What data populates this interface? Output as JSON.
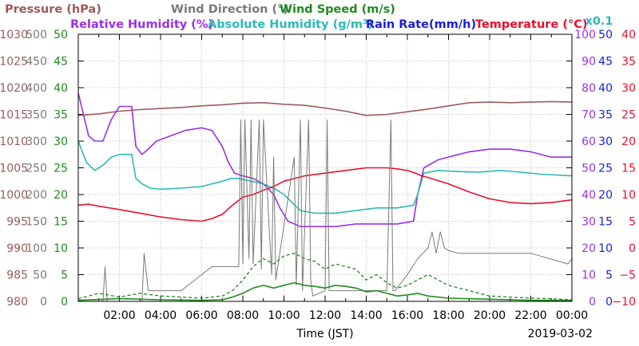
{
  "chart_data": {
    "type": "line",
    "date": "2019-03-02",
    "xlabel": "Time (JST)",
    "x_tick_labels": [
      "02:00",
      "04:00",
      "06:00",
      "08:00",
      "10:00",
      "12:00",
      "14:00",
      "16:00",
      "18:00",
      "20:00",
      "22:00",
      "00:00"
    ],
    "x_range_hours": [
      0,
      24
    ],
    "grid": true,
    "colors": {
      "pressure": "#9b5b5b",
      "wind_direction": "#7a7a7a",
      "wind_speed": "#1f8a1f",
      "relative_humidity": "#9b30e8",
      "absolute_humidity": "#2eb8b8",
      "rain_rate": "#1c1cd6",
      "temperature": "#e8102e"
    },
    "legend_row1": [
      {
        "key": "pressure",
        "label": "Pressure (hPa)"
      },
      {
        "key": "wind_direction",
        "label": "Wind Direction (°)"
      },
      {
        "key": "wind_speed",
        "label": "Wind Speed (m/s)"
      }
    ],
    "legend_row2": [
      {
        "key": "relative_humidity",
        "label": "Relative Humidity (%)"
      },
      {
        "key": "absolute_humidity",
        "label": "Absolute Humidity (g/m³)"
      },
      {
        "key": "rain_rate",
        "label": "Rain Rate(mm/h)"
      },
      {
        "key": "temperature",
        "label": "Temperature (°C)"
      }
    ],
    "scale_note": "x0.1",
    "axes": {
      "pressure": {
        "min": 980,
        "max": 1030,
        "ticks": [
          "980",
          "985",
          "990",
          "995",
          "1000",
          "1005",
          "1010",
          "1015",
          "1020",
          "1025",
          "1030"
        ]
      },
      "wind_direction": {
        "min": 0,
        "max": 500,
        "ticks": [
          "0",
          "50",
          "100",
          "150",
          "200",
          "250",
          "300",
          "350",
          "400",
          "450",
          "500"
        ]
      },
      "wind_speed": {
        "min": 0,
        "max": 50,
        "ticks": [
          "0",
          "5",
          "10",
          "15",
          "20",
          "25",
          "30",
          "35",
          "40",
          "45",
          "50"
        ]
      },
      "relative_humidity": {
        "min": 0,
        "max": 100,
        "ticks": [
          "0",
          "10",
          "20",
          "30",
          "40",
          "50",
          "60",
          "70",
          "80",
          "90",
          "100"
        ]
      },
      "rain_rate": {
        "min": 0,
        "max": 50,
        "ticks": [
          "0",
          "5",
          "10",
          "15",
          "20",
          "25",
          "30",
          "35",
          "40",
          "45",
          "50"
        ]
      },
      "temperature": {
        "min": -10,
        "max": 40,
        "ticks": [
          "−10",
          "−5",
          "0",
          "5",
          "10",
          "15",
          "20",
          "25",
          "30",
          "35",
          "40"
        ]
      }
    },
    "series": [
      {
        "key": "pressure",
        "axis": "pressure",
        "style": "solid",
        "x": [
          0,
          1,
          2,
          3,
          4,
          5,
          6,
          7,
          8,
          9,
          10,
          11,
          12,
          13,
          14,
          15,
          16,
          17,
          18,
          19,
          20,
          21,
          22,
          23,
          24
        ],
        "y": [
          1014.8,
          1015.1,
          1015.6,
          1015.9,
          1016.1,
          1016.3,
          1016.6,
          1016.8,
          1017.1,
          1017.2,
          1016.9,
          1016.7,
          1016.2,
          1015.6,
          1014.8,
          1015.0,
          1015.5,
          1016.0,
          1016.6,
          1017.2,
          1017.3,
          1017.2,
          1017.3,
          1017.4,
          1017.3
        ]
      },
      {
        "key": "relative_humidity",
        "axis": "relative_humidity",
        "style": "solid",
        "x": [
          0,
          0.5,
          0.8,
          1.2,
          1.6,
          2.0,
          2.6,
          2.8,
          3.1,
          3.4,
          3.8,
          4.5,
          5.2,
          6.0,
          6.5,
          7.0,
          7.3,
          7.6,
          8.0,
          8.5,
          9.0,
          9.5,
          9.8,
          10.2,
          10.8,
          11.5,
          12.5,
          13.5,
          14.5,
          15.5,
          16.3,
          16.5,
          16.8,
          17.5,
          18.5,
          19.0,
          20.0,
          21.0,
          22.0,
          23.0,
          24.0
        ],
        "y": [
          78,
          62,
          60,
          60,
          68,
          73,
          73,
          58,
          55,
          57,
          60,
          62,
          64,
          65,
          64,
          58,
          52,
          48,
          47,
          46,
          44,
          40,
          35,
          30,
          28,
          28,
          28,
          29,
          29,
          29,
          30,
          40,
          50,
          53,
          55,
          56,
          57,
          57,
          56,
          54,
          54
        ]
      },
      {
        "key": "absolute_humidity",
        "axis": "wind_direction",
        "style": "solid",
        "x": [
          0,
          0.4,
          0.8,
          1.2,
          1.6,
          2.0,
          2.6,
          2.8,
          3.1,
          3.5,
          4.0,
          5.0,
          6.0,
          7.0,
          7.4,
          7.8,
          8.4,
          9.0,
          9.6,
          10.0,
          10.4,
          10.8,
          11.5,
          12.5,
          13.5,
          14.5,
          15.5,
          16.3,
          16.5,
          16.8,
          17.5,
          18.5,
          19.5,
          20.5,
          21.5,
          22.5,
          24.0
        ],
        "y": [
          300,
          260,
          245,
          255,
          270,
          275,
          275,
          230,
          220,
          212,
          210,
          212,
          215,
          225,
          230,
          230,
          225,
          220,
          210,
          200,
          185,
          170,
          165,
          165,
          170,
          175,
          175,
          180,
          200,
          240,
          245,
          243,
          242,
          245,
          242,
          238,
          235
        ]
      },
      {
        "key": "temperature",
        "axis": "temperature",
        "style": "solid",
        "x": [
          0,
          0.5,
          1.0,
          2.0,
          3.0,
          4.0,
          5.0,
          6.0,
          6.5,
          7.0,
          7.5,
          8.0,
          8.5,
          9.0,
          9.5,
          10.0,
          10.5,
          11.0,
          12.0,
          13.0,
          14.0,
          15.0,
          15.5,
          16.0,
          16.4,
          16.7,
          17.0,
          18.0,
          19.0,
          20.0,
          21.0,
          22.0,
          23.0,
          24.0
        ],
        "y": [
          8.0,
          8.2,
          7.8,
          7.2,
          6.5,
          5.8,
          5.3,
          5.0,
          5.5,
          6.3,
          8.0,
          9.5,
          10.0,
          10.8,
          11.5,
          12.5,
          13.0,
          13.5,
          14.0,
          14.5,
          15.0,
          15.0,
          14.8,
          14.5,
          14.0,
          13.5,
          13.2,
          12.0,
          10.5,
          9.2,
          8.5,
          8.3,
          8.5,
          9.0
        ]
      },
      {
        "key": "wind_direction",
        "axis": "wind_direction",
        "style": "thin",
        "x": [
          0,
          1.2,
          1.3,
          1.4,
          3.1,
          3.2,
          3.4,
          3.6,
          5.0,
          6.5,
          7.3,
          7.8,
          7.9,
          8.0,
          8.1,
          8.3,
          8.4,
          8.5,
          8.8,
          8.9,
          9.0,
          9.4,
          9.5,
          9.6,
          10.5,
          10.6,
          10.8,
          10.9,
          11.2,
          11.3,
          11.4,
          12.0,
          12.1,
          12.2,
          12.4,
          13.0,
          15.0,
          15.2,
          15.3,
          15.4,
          16.0,
          16.5,
          17.0,
          17.2,
          17.4,
          17.6,
          17.8,
          18.0,
          18.5,
          20.0,
          22.0,
          23.8,
          24.0
        ],
        "y": [
          0,
          0,
          65,
          0,
          0,
          90,
          20,
          20,
          20,
          65,
          65,
          65,
          340,
          70,
          340,
          80,
          340,
          70,
          340,
          60,
          340,
          50,
          270,
          40,
          270,
          30,
          340,
          20,
          340,
          40,
          10,
          20,
          340,
          20,
          20,
          20,
          20,
          340,
          20,
          20,
          50,
          80,
          100,
          130,
          90,
          130,
          100,
          95,
          90,
          90,
          90,
          70,
          80
        ]
      },
      {
        "key": "wind_speed",
        "axis": "wind_speed",
        "style": "dashed",
        "x": [
          0,
          1,
          2,
          3,
          4,
          5,
          6,
          7,
          7.5,
          8,
          8.5,
          9,
          9.5,
          10,
          10.5,
          11,
          11.5,
          12,
          12.5,
          13,
          13.5,
          14,
          14.5,
          15,
          15.5,
          16,
          16.5,
          17,
          17.5,
          18,
          19,
          20,
          21,
          22,
          23,
          24
        ],
        "y": [
          0.5,
          1.5,
          0.8,
          1.5,
          1.0,
          0.8,
          0.6,
          1.0,
          2.0,
          4.0,
          6.5,
          8.0,
          7.0,
          8.5,
          9.0,
          8.0,
          7.5,
          6.0,
          7.0,
          6.5,
          6.0,
          4.0,
          5.0,
          3.5,
          2.5,
          3.0,
          4.0,
          5.0,
          4.0,
          3.0,
          2.0,
          1.0,
          0.8,
          0.6,
          0.5,
          0.3
        ]
      },
      {
        "key": "wind_speed",
        "axis": "wind_speed",
        "style": "solid",
        "x": [
          0,
          2,
          4,
          6,
          7,
          7.5,
          8,
          8.5,
          9,
          9.5,
          10,
          10.5,
          11,
          11.5,
          12,
          12.5,
          13,
          13.5,
          14,
          14.5,
          15,
          15.5,
          16,
          16.5,
          17,
          18,
          20,
          22,
          24
        ],
        "y": [
          0.2,
          0.5,
          0.3,
          0.2,
          0.3,
          0.8,
          1.5,
          2.5,
          3.0,
          2.5,
          3.0,
          3.5,
          3.0,
          2.8,
          2.5,
          3.0,
          2.8,
          2.5,
          1.8,
          2.0,
          1.5,
          1.0,
          1.2,
          1.5,
          1.0,
          0.6,
          0.4,
          0.2,
          0.2
        ]
      }
    ]
  }
}
